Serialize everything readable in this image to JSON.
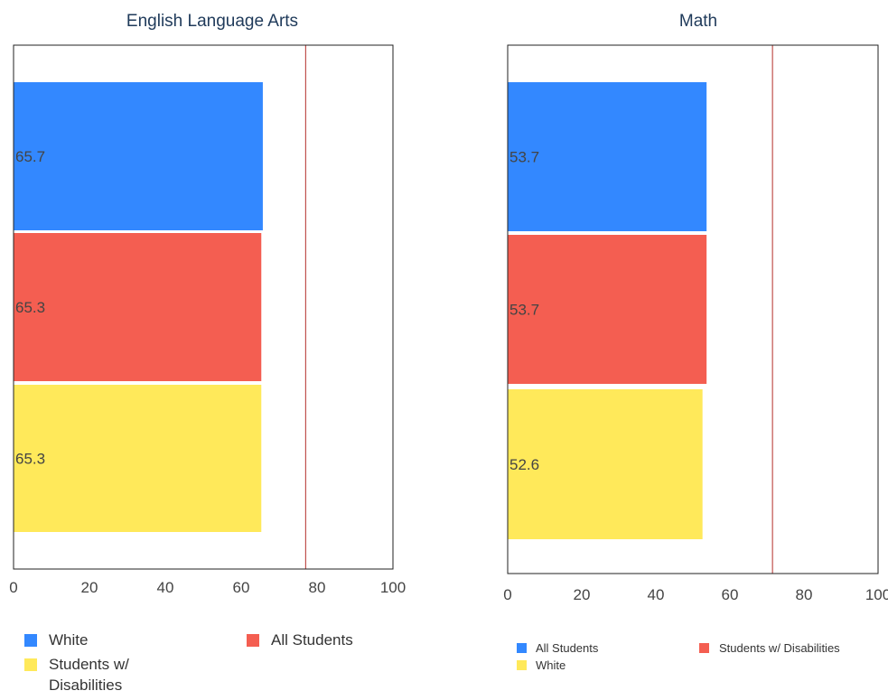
{
  "chart_data": [
    {
      "type": "bar",
      "orientation": "horizontal",
      "title": "English Language Arts",
      "xlim": [
        0,
        100
      ],
      "xticks": [
        "0",
        "20",
        "40",
        "60",
        "80",
        "100"
      ],
      "target_line": 77,
      "target_color": "#c0504d",
      "bars": [
        {
          "value": 65.7,
          "label": "65.7",
          "color": "#3388ff"
        },
        {
          "value": 65.3,
          "label": "65.3",
          "color": "#f45e51"
        },
        {
          "value": 65.3,
          "label": "65.3",
          "color": "#ffe95a"
        }
      ],
      "legend": [
        {
          "label": "White",
          "color": "#3388ff"
        },
        {
          "label": "All Students",
          "color": "#f45e51"
        },
        {
          "label": "Students w/",
          "label2": "Disabilities",
          "color": "#ffe95a"
        }
      ]
    },
    {
      "type": "bar",
      "orientation": "horizontal",
      "title": "Math",
      "xlim": [
        0,
        100
      ],
      "xticks": [
        "0",
        "20",
        "40",
        "60",
        "80",
        "100"
      ],
      "target_line": 71.5,
      "target_color": "#c0504d",
      "bars": [
        {
          "value": 53.7,
          "label": "53.7",
          "color": "#3388ff"
        },
        {
          "value": 53.7,
          "label": "53.7",
          "color": "#f45e51"
        },
        {
          "value": 52.6,
          "label": "52.6",
          "color": "#ffe95a"
        }
      ],
      "legend": [
        {
          "label": "All Students",
          "color": "#3388ff"
        },
        {
          "label": "Students w/ Disabilities",
          "color": "#f45e51"
        },
        {
          "label": "White",
          "color": "#ffe95a"
        }
      ]
    }
  ]
}
